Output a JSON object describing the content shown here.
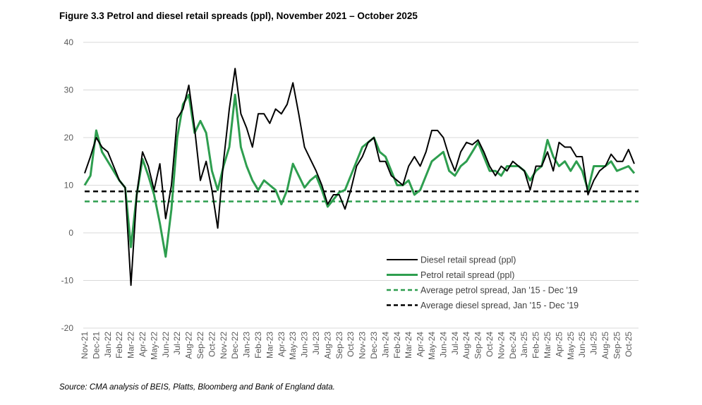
{
  "chart_data": {
    "type": "line",
    "title": "Figure 3.3 Petrol and diesel retail spreads (ppl), November 2021 – October 2025",
    "source": "Source: CMA analysis of BEIS, Platts, Bloomberg and Bank of England data.",
    "categories": [
      "Nov-21",
      null,
      "Dec-21",
      null,
      "Jan-22",
      null,
      "Feb-22",
      null,
      "Mar-22",
      null,
      "Apr-22",
      null,
      "May-22",
      null,
      "Jun-22",
      null,
      "Jul-22",
      null,
      "Aug-22",
      null,
      "Sep-22",
      null,
      "Oct-22",
      null,
      "Nov-22",
      null,
      "Dec-22",
      null,
      "Jan-23",
      null,
      "Feb-23",
      null,
      "Mar-23",
      null,
      "Apr-23",
      null,
      "May-23",
      null,
      "Jun-23",
      null,
      "Jul-23",
      null,
      "Aug-23",
      null,
      "Sep-23",
      null,
      "Oct-23",
      null,
      "Nov-23",
      null,
      "Dec-23",
      null,
      "Jan-24",
      null,
      "Feb-24",
      null,
      "Mar-24",
      null,
      "Apr-24",
      null,
      "May-24",
      null,
      "Jun-24",
      null,
      "Jul-24",
      null,
      "Aug-24",
      null,
      "Sep-24",
      null,
      "Oct-24",
      null,
      "Nov-24",
      null,
      "Dec-24",
      null,
      "Jan-25",
      null,
      "Feb-25",
      null,
      "Mar-25",
      null,
      "Apr-25",
      null,
      "May-25",
      null,
      "Jun-25",
      null,
      "Jul-25",
      null,
      "Aug-25",
      null,
      "Sep-25",
      null,
      "Oct-25",
      null
    ],
    "series": [
      {
        "name": "Diesel retail spread (ppl)",
        "color": "#000000",
        "values": [
          12.5,
          16,
          20,
          18,
          17,
          14,
          11,
          9.5,
          -11,
          8,
          17,
          14,
          9,
          14.5,
          3,
          10,
          24,
          26,
          31,
          22,
          11,
          15,
          9,
          1,
          15,
          26,
          34.5,
          25,
          22,
          18,
          25,
          25,
          23,
          26,
          25,
          27,
          31.5,
          25,
          18,
          15.5,
          13,
          10,
          6,
          8,
          8,
          5,
          9,
          14,
          16,
          19,
          20,
          15,
          15,
          12,
          11,
          10,
          14,
          16,
          14,
          17,
          21.5,
          21.5,
          20,
          16,
          13,
          17,
          19,
          18.5,
          19.5,
          17,
          14,
          12,
          14,
          13,
          15,
          14,
          13,
          9,
          14,
          14,
          17,
          13,
          19,
          18,
          18,
          16,
          16,
          8,
          11,
          13,
          14,
          16.5,
          15,
          15,
          17.5,
          14.5
        ]
      },
      {
        "name": "Petrol retail spread (ppl)",
        "color": "#2e9e4f",
        "values": [
          10,
          12,
          21.5,
          17,
          15,
          13,
          11,
          9.5,
          -3,
          8,
          15.5,
          12,
          8,
          2,
          -5,
          5,
          20,
          27,
          29,
          21,
          23.5,
          21,
          13,
          9,
          14,
          18,
          29,
          18,
          14,
          11,
          9,
          11,
          10,
          9,
          6,
          9,
          14.5,
          12,
          9.5,
          11,
          12,
          9,
          5.5,
          7,
          8.5,
          9,
          12,
          15,
          18,
          19,
          20,
          17,
          16,
          13,
          10,
          10,
          11,
          8,
          9,
          12,
          15,
          16,
          17,
          13,
          12,
          14,
          15,
          17,
          19,
          16,
          13,
          13,
          12,
          14,
          14,
          14,
          13,
          11,
          13,
          14,
          19.5,
          16,
          14,
          15,
          13,
          15,
          13,
          9,
          14,
          14,
          14,
          15,
          13,
          13.5,
          14,
          12.5
        ]
      }
    ],
    "reference_lines": [
      {
        "name": "Average petrol spread, Jan '15 - Dec '19",
        "color": "#2e9e4f",
        "value": 6.6
      },
      {
        "name": "Average diesel spread, Jan '15 - Dec '19",
        "color": "#000000",
        "value": 8.7
      }
    ],
    "ylim": [
      -20,
      40
    ],
    "yticks": [
      -20,
      -10,
      0,
      10,
      20,
      30,
      40
    ],
    "grid": true
  }
}
